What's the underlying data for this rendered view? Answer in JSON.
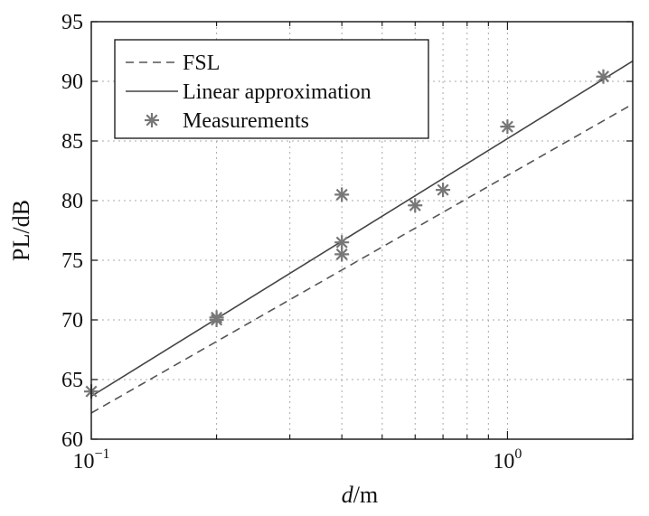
{
  "chart_data": {
    "type": "line",
    "xscale": "log",
    "xlim": [
      0.1,
      2.0
    ],
    "ylim": [
      60,
      95
    ],
    "grid": true,
    "xlabel_italic": "d",
    "xlabel_rest": "/m",
    "ylabel": "PL/dB",
    "legend_position": "top-left",
    "y_ticks": [
      60,
      65,
      70,
      75,
      80,
      85,
      90,
      95
    ],
    "x_ticks": [
      {
        "value": 0.1,
        "base": "10",
        "exp": "−1"
      },
      {
        "value": 1.0,
        "base": "10",
        "exp": "0"
      }
    ],
    "series": [
      {
        "name": "FSL",
        "kind": "dashed-line",
        "x": [
          0.1,
          2.0
        ],
        "y": [
          62.2,
          88.1
        ]
      },
      {
        "name": "Linear approximation",
        "kind": "solid-line",
        "x": [
          0.1,
          2.0
        ],
        "y": [
          63.6,
          91.7
        ]
      },
      {
        "name": "Measurements",
        "kind": "markers",
        "x": [
          0.1,
          0.2,
          0.2,
          0.4,
          0.4,
          0.4,
          0.6,
          0.7,
          1.0,
          1.7
        ],
        "y": [
          64.0,
          70.0,
          70.2,
          80.5,
          76.5,
          75.5,
          79.6,
          80.9,
          86.2,
          90.4
        ]
      }
    ],
    "colors": {
      "fsl": "#555555",
      "linear": "#444444",
      "markers": "#777777",
      "grid": "#aaaaaa",
      "axes": "#111111"
    }
  }
}
